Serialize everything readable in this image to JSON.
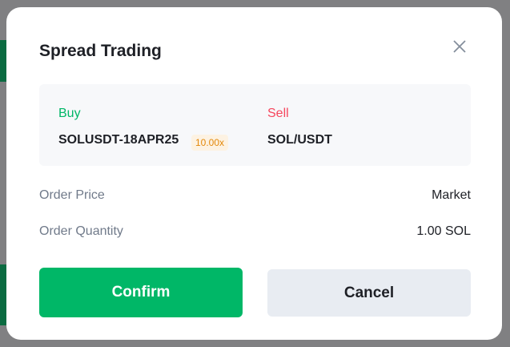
{
  "modal": {
    "title": "Spread Trading",
    "buy": {
      "label": "Buy",
      "symbol": "SOLUSDT-18APR25",
      "leverage": "10.00x",
      "color": "#00b767"
    },
    "sell": {
      "label": "Sell",
      "symbol": "SOL/USDT",
      "color": "#f6465d"
    },
    "details": [
      {
        "label": "Order Price",
        "value": "Market"
      },
      {
        "label": "Order Quantity",
        "value": "1.00 SOL"
      }
    ],
    "confirm_label": "Confirm",
    "cancel_label": "Cancel"
  }
}
